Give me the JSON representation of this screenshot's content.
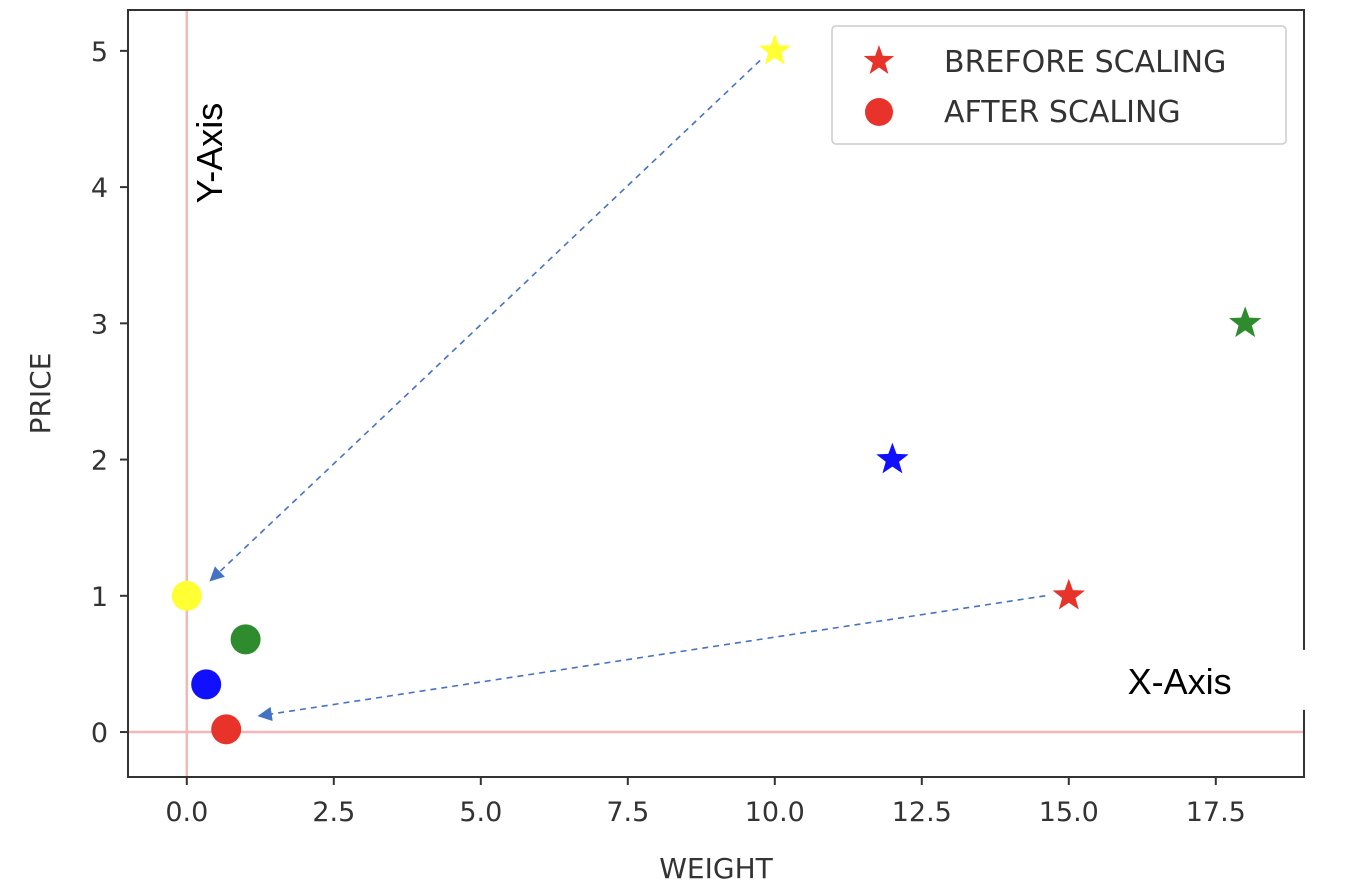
{
  "chart_data": {
    "type": "scatter",
    "title": "",
    "xlabel": "WEIGHT",
    "ylabel": "PRICE",
    "xlim": [
      -1.0,
      19.0
    ],
    "ylim": [
      -0.33,
      5.3
    ],
    "xticks": [
      0.0,
      2.5,
      5.0,
      7.5,
      10.0,
      12.5,
      15.0,
      17.5
    ],
    "xtick_labels": [
      "0.0",
      "2.5",
      "5.0",
      "7.5",
      "10.0",
      "12.5",
      "15.0",
      "17.5"
    ],
    "yticks": [
      0,
      1,
      2,
      3,
      4,
      5
    ],
    "ytick_labels": [
      "0",
      "1",
      "2",
      "3",
      "4",
      "5"
    ],
    "grid": false,
    "reference_lines": {
      "x": 0,
      "y": 0,
      "color": "#f4b6b6"
    },
    "series": [
      {
        "name": "BREFORE SCALING",
        "marker": "star",
        "points": [
          {
            "x": 10,
            "y": 5,
            "color": "#ffff33"
          },
          {
            "x": 18,
            "y": 3,
            "color": "#2e8b2e"
          },
          {
            "x": 12,
            "y": 2,
            "color": "#1010ff"
          },
          {
            "x": 15,
            "y": 1,
            "color": "#e8332a"
          }
        ]
      },
      {
        "name": "AFTER SCALING",
        "marker": "circle",
        "points": [
          {
            "x": 0.0,
            "y": 1.0,
            "color": "#ffff33"
          },
          {
            "x": 1.0,
            "y": 0.68,
            "color": "#2e8b2e"
          },
          {
            "x": 0.33,
            "y": 0.35,
            "color": "#1010ff"
          },
          {
            "x": 0.67,
            "y": 0.02,
            "color": "#e8332a"
          }
        ]
      }
    ],
    "legend": {
      "position": "top-right",
      "entries": [
        {
          "label": "BREFORE SCALING",
          "marker": "star",
          "color": "#e8332a"
        },
        {
          "label": "AFTER SCALING",
          "marker": "circle",
          "color": "#e8332a"
        }
      ]
    },
    "annotations": [
      {
        "text": "Y-Axis",
        "x": 0.6,
        "y": 4.25,
        "rotation": -90
      },
      {
        "text": "X-Axis",
        "x": 16.0,
        "y": 0.28
      }
    ],
    "arrows": [
      {
        "from": [
          9.75,
          4.93
        ],
        "to": [
          0.42,
          1.12
        ],
        "color": "#4472c4",
        "style": "dashed"
      },
      {
        "from": [
          14.6,
          1.0
        ],
        "to": [
          1.25,
          0.12
        ],
        "color": "#4472c4",
        "style": "dashed"
      }
    ]
  }
}
